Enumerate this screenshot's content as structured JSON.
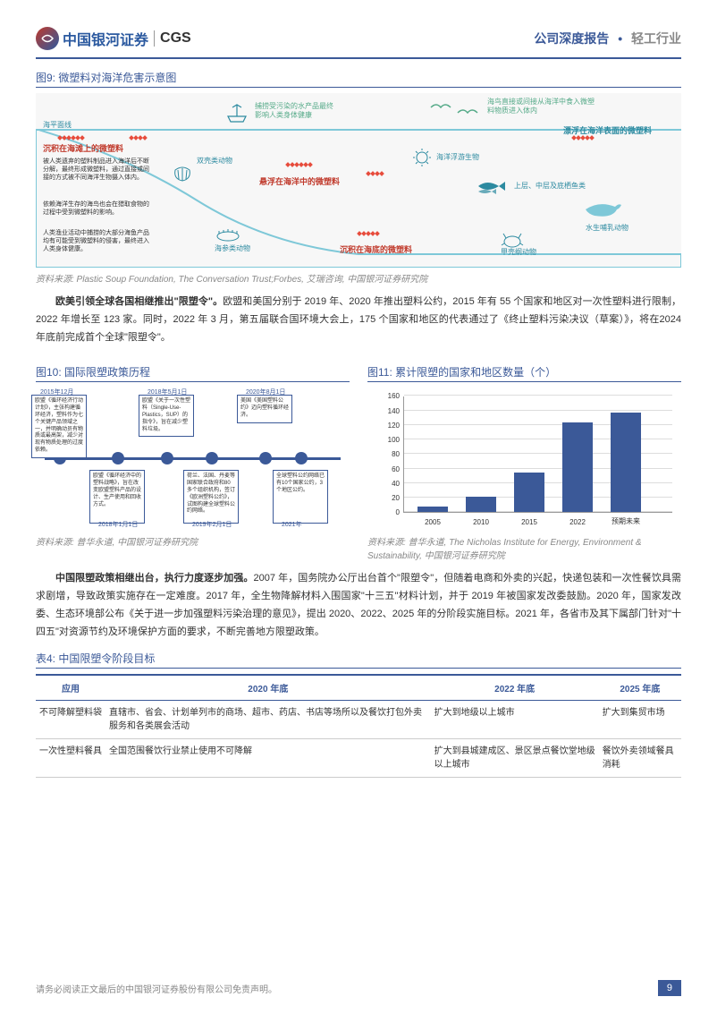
{
  "header": {
    "company": "中国银河证券",
    "cgs": "CGS",
    "report_type": "公司深度报告",
    "industry": "轻工行业"
  },
  "fig9": {
    "title": "图9: 微塑料对海洋危害示意图",
    "source": "资料来源: Plastic Soup Foundation, The Conversation Trust;Forbes, 艾瑞咨询, 中国银河证券研究院",
    "labels": {
      "sealevel": "海平面线",
      "beach_red": "沉积在海滩上的微塑料",
      "beach_notes": [
        "被人类遗弃的塑料制品进入海洋后不断分解，最终形成微塑料，通过直接或间接的方式被不同海洋生物摄入体内。",
        "依赖海洋生存的海鸟也会在猎取食物的过程中受到微塑料的影响。",
        "人类渔业活动中捕捞的大部分海鱼产品均有可能受到微塑料的侵害，最终进入人类身体健康。"
      ],
      "fishing": "捕捞受污染的水产品最终影响人类身体健康",
      "birds": "海鸟直接或间接从海洋中食入微塑料物质进入体内",
      "surface_blue": "漂浮在海洋表面的微塑料",
      "shell": "双壳类动物",
      "suspend_red": "悬浮在海洋中的微塑料",
      "plankton": "海洋浮游生物",
      "fish_layers": "上层、中层及底栖鱼类",
      "mammal": "水生哺乳动物",
      "cucumber": "海参类动物",
      "seabed_red": "沉积在海底的微塑料",
      "crustacean": "甲壳纲动物"
    }
  },
  "para1": "欧美引领全球各国相继推出\"限塑令\"。欧盟和美国分别于 2019 年、2020 年推出塑料公约，2015 年有 55 个国家和地区对一次性塑料进行限制，2022 年增长至 123 家。同时，2022 年 3 月，第五届联合国环境大会上，175 个国家和地区的代表通过了《终止塑料污染决议（草案）》，将在2024 年底前完成首个全球\"限塑令\"。",
  "para1_bold": "欧美引领全球各国相继推出\"限塑令\"。",
  "fig10": {
    "title": "图10: 国际限塑政策历程",
    "source": "资料来源: 普华永道, 中国银河证券研究院",
    "nodes": [
      {
        "date": "2015年12月",
        "text": "欧盟《循环经济行动计划》，主张构建循环经济，塑料作为七个关键产品领域之一，并明确动员有物质或最高架，减少对现有物质处理的过度依赖。",
        "pos": "top",
        "x": 20
      },
      {
        "date": "2018年1月1日",
        "text": "欧盟《循环经济中的塑料战略》，旨在改变欧盟塑料产品的设计、生产使用和回收方式。",
        "pos": "bottom",
        "x": 85
      },
      {
        "date": "2018年5月1日",
        "text": "欧盟《关于一次性塑料（Single-Use-Plastics，SUP）的指令》，旨在减少塑料垃圾。",
        "pos": "top",
        "x": 140
      },
      {
        "date": "2019年2月1日",
        "text": "荷兰、法国、丹麦等国家联合政府和80多个组织机构，签订《欧洲塑料公约》，试图构建全球塑料公约网络。",
        "pos": "bottom",
        "x": 190
      },
      {
        "date": "2020年8月1日",
        "text": "美国《美国塑料公约》迈向塑料循环经济。",
        "pos": "top",
        "x": 250
      },
      {
        "date": "2021年",
        "text": "全球塑料公约网络已有10个国家公约，3个地区公约。",
        "pos": "bottom",
        "x": 290
      }
    ]
  },
  "fig11": {
    "title": "图11: 累计限塑的国家和地区数量（个）",
    "source": "资料来源: 普华永道, The Nicholas Institute for Energy, Environment & Sustainability, 中国银河证券研究院",
    "type": "bar",
    "categories": [
      "2005",
      "2010",
      "2015",
      "2022",
      "预期未来"
    ],
    "values": [
      8,
      22,
      55,
      123,
      137
    ],
    "ylim": [
      0,
      160
    ],
    "ytick_step": 20,
    "bar_color": "#3b5998",
    "grid_color": "#dddddd",
    "axis_color": "#999999",
    "label_fontsize": 8
  },
  "para2": "中国限塑政策相继出台，执行力度逐步加强。2007 年，国务院办公厅出台首个\"限塑令\"，但随着电商和外卖的兴起，快递包装和一次性餐饮具需求剧增，导致政策实施存在一定难度。2017 年，全生物降解材料入围国家\"十三五\"材料计划，并于 2019 年被国家发改委鼓励。2020 年，国家发改委、生态环境部公布《关于进一步加强塑料污染治理的意见》，提出 2020、2022、2025 年的分阶段实施目标。2021 年，各省市及其下属部门针对\"十四五\"对资源节约及环境保护方面的要求，不断完善地方限塑政策。",
  "para2_bold": "中国限塑政策相继出台，执行力度逐步加强。",
  "table4": {
    "title": "表4: 中国限塑令阶段目标",
    "headers": [
      "应用",
      "2020 年底",
      "2022 年底",
      "2025 年底"
    ],
    "rows": [
      [
        "不可降解塑料袋",
        "直辖市、省会、计划单列市的商场、超市、药店、书店等场所以及餐饮打包外卖服务和各类展会活动",
        "扩大到地级以上城市",
        "扩大到集贸市场"
      ],
      [
        "一次性塑料餐具",
        "全国范围餐饮行业禁止使用不可降解",
        "扩大到县城建成区、景区景点餐饮堂地级以上城市",
        "餐饮外卖领域餐具消耗"
      ]
    ]
  },
  "footer": {
    "disclaimer": "请务必阅读正文最后的中国银河证券股份有限公司免责声明。",
    "page": "9"
  }
}
